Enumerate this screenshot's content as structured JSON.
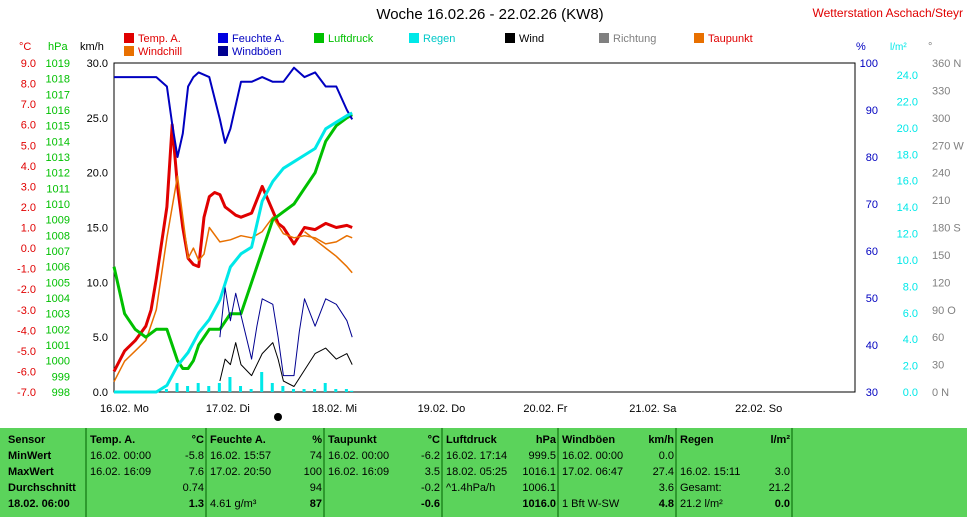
{
  "title": "Woche 16.02.26 - 22.02.26 (KW8)",
  "station": "Wetterstation Aschach/Steyr",
  "axis_units": {
    "temp": "°C",
    "pressure": "hPa",
    "wind": "km/h",
    "humidity": "%",
    "rain": "l/m²",
    "direction": "°"
  },
  "legend": [
    {
      "label": "Temp. A.",
      "color": "#e00000"
    },
    {
      "label": "Feuchte A.",
      "color": "#0000e0"
    },
    {
      "label": "Luftdruck",
      "color": "#00c000"
    },
    {
      "label": "Regen",
      "color": "#00e8e8"
    },
    {
      "label": "Wind",
      "color": "#000000"
    },
    {
      "label": "Richtung",
      "color": "#808080"
    },
    {
      "label": "Taupunkt",
      "color": "#e87000"
    },
    {
      "label": "Windchill",
      "color": "#e87000"
    },
    {
      "label": "Windböen",
      "color": "#000090"
    }
  ],
  "colors": {
    "temp": "#e00000",
    "pressure": "#00c000",
    "humidity": "#0000c0",
    "rain": "#00e8e8",
    "wind": "#000000",
    "gust": "#000090",
    "dew": "#e87000",
    "stats_bg": "#5bd35b"
  },
  "chart_data": {
    "type": "line",
    "x_unit": "days from 16.02. 00:00",
    "x_range": [
      0,
      7
    ],
    "x_ticks": [
      "16.02.  Mo",
      "17.02.  Di",
      "18.02.  Mi",
      "19.02.  Do",
      "20.02.  Fr",
      "21.02.  Sa",
      "22.02.  So"
    ],
    "axes": {
      "temp": {
        "range": [
          -7.0,
          9.0
        ],
        "ticks": [
          "9.0",
          "8.0",
          "7.0",
          "6.0",
          "5.0",
          "4.0",
          "3.0",
          "2.0",
          "1.0",
          "0.0",
          "-1.0",
          "-2.0",
          "-3.0",
          "-4.0",
          "-5.0",
          "-6.0",
          "-7.0"
        ]
      },
      "pressure": {
        "range": [
          998,
          1019
        ],
        "ticks": [
          "1019",
          "1018",
          "1017",
          "1016",
          "1015",
          "1014",
          "1013",
          "1012",
          "1011",
          "1010",
          "1009",
          "1008",
          "1007",
          "1006",
          "1005",
          "1004",
          "1003",
          "1002",
          "1001",
          "1000",
          "999",
          "998"
        ]
      },
      "wind": {
        "range": [
          0,
          30
        ],
        "ticks": [
          "30.0",
          "25.0",
          "20.0",
          "15.0",
          "10.0",
          "5.0",
          "0.0"
        ]
      },
      "humidity": {
        "range": [
          30,
          100
        ],
        "ticks": [
          "100",
          "90",
          "80",
          "70",
          "60",
          "50",
          "40",
          "30"
        ]
      },
      "rain": {
        "range": [
          0,
          25
        ],
        "ticks": [
          "24.0",
          "22.0",
          "20.0",
          "18.0",
          "16.0",
          "14.0",
          "12.0",
          "10.0",
          "8.0",
          "6.0",
          "4.0",
          "2.0",
          "0.0"
        ]
      },
      "direction": {
        "range": [
          0,
          360
        ],
        "ticks": [
          "360 N",
          "330",
          "300",
          "270 W",
          "240",
          "210",
          "180 S",
          "150",
          "120",
          "90 O",
          "60",
          "30",
          "0   N"
        ]
      }
    },
    "series": [
      {
        "name": "Temp. A.",
        "axis": "temp",
        "x": [
          0,
          0.1,
          0.2,
          0.3,
          0.35,
          0.4,
          0.5,
          0.55,
          0.6,
          0.65,
          0.7,
          0.75,
          0.8,
          0.85,
          0.9,
          0.95,
          1.0,
          1.05,
          1.1,
          1.15,
          1.2,
          1.3,
          1.4,
          1.5,
          1.55,
          1.6,
          1.7,
          1.8,
          1.9,
          2.0,
          2.1,
          2.2,
          2.25
        ],
        "y": [
          -6.0,
          -5.0,
          -4.5,
          -3.8,
          -3.0,
          -1.5,
          2.0,
          6.0,
          3.0,
          1.0,
          -0.5,
          -0.8,
          -0.9,
          1.5,
          2.5,
          2.7,
          2.6,
          2.0,
          1.8,
          1.6,
          1.5,
          1.7,
          3.0,
          1.8,
          1.2,
          1.0,
          0.2,
          1.0,
          0.9,
          1.2,
          1.0,
          1.1,
          1.0
        ]
      },
      {
        "name": "Taupunkt",
        "axis": "temp",
        "x": [
          0,
          0.1,
          0.2,
          0.3,
          0.4,
          0.5,
          0.6,
          0.65,
          0.7,
          0.75,
          0.8,
          0.85,
          0.9,
          1.0,
          1.1,
          1.2,
          1.3,
          1.4,
          1.5,
          1.6,
          1.7,
          1.8,
          1.9,
          2.0,
          2.1,
          2.2,
          2.25
        ],
        "y": [
          -6.5,
          -5.5,
          -5.0,
          -4.5,
          -3.0,
          0.5,
          3.5,
          1.5,
          -0.5,
          0.0,
          -0.6,
          -0.3,
          1.0,
          0.3,
          0.4,
          0.6,
          0.5,
          0.8,
          1.5,
          0.7,
          0.5,
          0.6,
          0.5,
          0.2,
          0.3,
          0.6,
          0.5
        ]
      },
      {
        "name": "Windchill",
        "axis": "temp",
        "x": [
          1.8,
          1.9,
          2.0,
          2.1,
          2.2,
          2.25
        ],
        "y": [
          0.8,
          0.4,
          0.0,
          -0.4,
          -0.9,
          -1.2
        ]
      },
      {
        "name": "Luftdruck",
        "axis": "pressure",
        "x": [
          0,
          0.1,
          0.2,
          0.3,
          0.4,
          0.5,
          0.55,
          0.6,
          0.65,
          0.7,
          0.75,
          0.8,
          0.9,
          1.0,
          1.1,
          1.2,
          1.3,
          1.4,
          1.5,
          1.6,
          1.7,
          1.8,
          1.9,
          2.0,
          2.1,
          2.2,
          2.25
        ],
        "y": [
          1006,
          1003,
          1002,
          1001.5,
          1002,
          1002,
          1001,
          1000,
          999.5,
          999.5,
          1000,
          1001,
          1002,
          1002,
          1003,
          1003,
          1005,
          1007,
          1009,
          1009.5,
          1010,
          1011,
          1012,
          1014,
          1015,
          1015.5,
          1015.7
        ]
      },
      {
        "name": "Feuchte A.",
        "axis": "humidity",
        "x": [
          0,
          0.2,
          0.4,
          0.5,
          0.55,
          0.6,
          0.65,
          0.7,
          0.75,
          0.8,
          0.9,
          1.0,
          1.05,
          1.1,
          1.2,
          1.3,
          1.4,
          1.5,
          1.6,
          1.7,
          1.8,
          1.9,
          2.0,
          2.1,
          2.2,
          2.25
        ],
        "y": [
          97,
          97,
          97,
          95,
          87,
          80,
          85,
          95,
          97,
          98,
          97,
          88,
          83,
          86,
          96,
          96,
          97,
          96,
          96,
          99,
          97,
          98,
          95,
          95,
          90,
          88
        ]
      },
      {
        "name": "Regen",
        "axis": "rain",
        "x": [
          0,
          0.4,
          0.5,
          0.6,
          0.7,
          0.8,
          0.9,
          1.0,
          1.1,
          1.2,
          1.3,
          1.4,
          1.5,
          1.6,
          1.7,
          1.8,
          1.9,
          2.0,
          2.1,
          2.2,
          2.25
        ],
        "y": [
          0,
          0,
          0.5,
          2.0,
          3.0,
          4.5,
          5.5,
          7.0,
          9.5,
          10.5,
          11.0,
          14.5,
          16.0,
          17.0,
          17.5,
          18.0,
          18.5,
          20.0,
          20.5,
          21.0,
          21.2
        ]
      },
      {
        "name": "Wind",
        "axis": "wind",
        "x": [
          1.0,
          1.05,
          1.1,
          1.15,
          1.2,
          1.3,
          1.4,
          1.5,
          1.55,
          1.6,
          1.7,
          1.8,
          1.9,
          2.0,
          2.1,
          2.2,
          2.25
        ],
        "y": [
          1.0,
          3.0,
          2.5,
          4.5,
          2.5,
          1.5,
          3.5,
          4.5,
          3.0,
          1.0,
          0.5,
          2.0,
          3.5,
          4.0,
          3.0,
          3.5,
          2.5
        ]
      },
      {
        "name": "Windböen",
        "axis": "wind",
        "x": [
          1.0,
          1.05,
          1.1,
          1.15,
          1.2,
          1.3,
          1.35,
          1.4,
          1.5,
          1.55,
          1.6,
          1.7,
          1.75,
          1.8,
          1.9,
          2.0,
          2.1,
          2.2,
          2.25
        ],
        "y": [
          5.0,
          9.5,
          6.5,
          9.0,
          7.0,
          3.0,
          6.0,
          8.5,
          8.0,
          5.0,
          1.5,
          1.5,
          5.5,
          8.5,
          6.0,
          8.5,
          8.0,
          6.5,
          5.0
        ]
      }
    ],
    "grid": true
  },
  "stats": {
    "sensor_col": {
      "header": "Sensor",
      "rows": [
        "MinWert",
        "MaxWert",
        "Durchschnitt",
        "18.02.  06:00"
      ]
    },
    "columns": [
      {
        "name": "Temp. A.",
        "unit": "°C",
        "rows": [
          [
            "16.02.  00:00",
            "-5.8"
          ],
          [
            "16.02.  16:09",
            "7.6"
          ],
          [
            "",
            "0.74"
          ],
          [
            "",
            "1.3"
          ]
        ]
      },
      {
        "name": "Feuchte A.",
        "unit": "%",
        "rows": [
          [
            "16.02.  15:57",
            "74"
          ],
          [
            "17.02.  20:50",
            "100"
          ],
          [
            "",
            "94"
          ],
          [
            "4.61 g/m³",
            "87"
          ]
        ]
      },
      {
        "name": "Taupunkt",
        "unit": "°C",
        "rows": [
          [
            "16.02.  00:00",
            "-6.2"
          ],
          [
            "16.02.  16:09",
            "3.5"
          ],
          [
            "",
            "-0.2"
          ],
          [
            "",
            "-0.6"
          ]
        ]
      },
      {
        "name": "Luftdruck",
        "unit": "hPa",
        "rows": [
          [
            "16.02.  17:14",
            "999.5"
          ],
          [
            "18.02.  05:25",
            "1016.1"
          ],
          [
            "^1.4hPa/h",
            "1006.1"
          ],
          [
            "",
            "1016.0"
          ]
        ]
      },
      {
        "name": "Windböen",
        "unit": "km/h",
        "rows": [
          [
            "16.02.  00:00",
            "0.0"
          ],
          [
            "17.02.  06:47",
            "27.4"
          ],
          [
            "",
            "3.6"
          ],
          [
            "1 Bft W-SW",
            "4.8"
          ]
        ]
      },
      {
        "name": "Regen",
        "unit": "l/m²",
        "rows": [
          [
            "",
            ""
          ],
          [
            "16.02.  15:11",
            "3.0"
          ],
          [
            "Gesamt:",
            "21.2"
          ],
          [
            "21.2 l/m²",
            "0.0"
          ]
        ]
      }
    ]
  }
}
